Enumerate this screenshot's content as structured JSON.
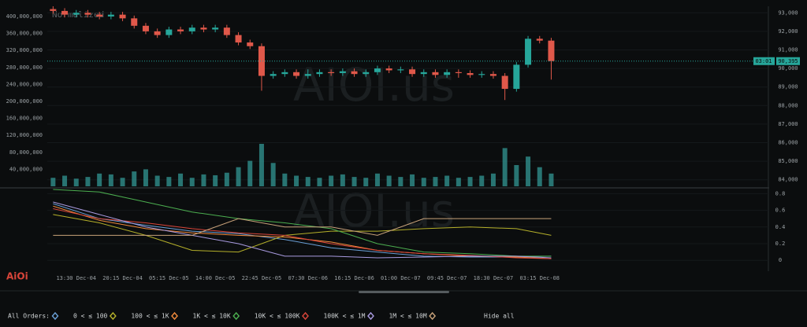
{
  "watermark": "AIOI.us",
  "logo": "AiOi",
  "hide_all": "Hide all",
  "chart_data": [
    {
      "type": "candlestick",
      "title": "Normalized",
      "categories": [
        null,
        null,
        "13:30 Dec-04",
        null,
        null,
        null,
        "20:15 Dec-04",
        null,
        null,
        null,
        "05:15 Dec-05",
        null,
        null,
        null,
        "14:00 Dec-05",
        null,
        null,
        null,
        "22:45 Dec-05",
        null,
        null,
        null,
        "07:30 Dec-06",
        null,
        null,
        null,
        "16:15 Dec-06",
        null,
        null,
        null,
        "01:00 Dec-07",
        null,
        null,
        null,
        "09:45 Dec-07",
        null,
        null,
        null,
        "18:30 Dec-07",
        null,
        null,
        null,
        "03:15 Dec-08",
        null
      ],
      "open": [
        93200,
        93100,
        92900,
        93000,
        92900,
        92800,
        92900,
        92700,
        92300,
        92000,
        91800,
        92100,
        92000,
        92200,
        92100,
        92200,
        91800,
        91400,
        91200,
        89600,
        89700,
        89800,
        89600,
        89700,
        89800,
        89750,
        89850,
        89700,
        89800,
        90000,
        89900,
        89950,
        89700,
        89800,
        89650,
        89800,
        89750,
        89650,
        89700,
        89600,
        88900,
        90200,
        91600,
        91500
      ],
      "high": [
        93350,
        93250,
        93150,
        93150,
        93050,
        93050,
        93050,
        92850,
        92450,
        92150,
        92250,
        92250,
        92350,
        92350,
        92350,
        92350,
        91950,
        91550,
        91350,
        89850,
        89950,
        89950,
        89950,
        89950,
        89950,
        90000,
        90000,
        89950,
        90150,
        90150,
        90100,
        90100,
        89950,
        89950,
        89950,
        89950,
        89900,
        89850,
        89850,
        89750,
        90350,
        91750,
        91750,
        91650
      ],
      "low": [
        92950,
        92750,
        92750,
        92750,
        92650,
        92650,
        92550,
        92150,
        91850,
        91650,
        91650,
        91850,
        91850,
        91950,
        91950,
        91650,
        91250,
        91050,
        88800,
        89450,
        89550,
        89450,
        89450,
        89550,
        89600,
        89600,
        89550,
        89550,
        89650,
        89750,
        89750,
        89550,
        89550,
        89500,
        89500,
        89500,
        89500,
        89500,
        89450,
        88300,
        88750,
        90050,
        91350,
        89400
      ],
      "close": [
        93100,
        92900,
        93000,
        92900,
        92800,
        92900,
        92700,
        92300,
        92000,
        91800,
        92100,
        92000,
        92200,
        92100,
        92200,
        91800,
        91400,
        91200,
        89600,
        89700,
        89800,
        89600,
        89700,
        89800,
        89750,
        89850,
        89700,
        89800,
        90000,
        89900,
        89950,
        89700,
        89800,
        89650,
        89800,
        89750,
        89650,
        89700,
        89600,
        88900,
        90200,
        91600,
        91500,
        90395
      ],
      "up_color": "#26a69a",
      "down_color": "#e0584a",
      "volume": {
        "axis": "y2",
        "color": "#2f8f8c",
        "values": [
          20000000,
          25000000,
          18000000,
          22000000,
          30000000,
          28000000,
          20000000,
          35000000,
          40000000,
          25000000,
          22000000,
          30000000,
          20000000,
          28000000,
          26000000,
          32000000,
          45000000,
          60000000,
          100000000,
          55000000,
          30000000,
          25000000,
          22000000,
          20000000,
          25000000,
          28000000,
          22000000,
          20000000,
          30000000,
          25000000,
          22000000,
          28000000,
          20000000,
          22000000,
          25000000,
          20000000,
          22000000,
          25000000,
          30000000,
          90000000,
          50000000,
          70000000,
          45000000,
          30000000
        ]
      },
      "ylim": [
        83650,
        93350
      ],
      "yticks": [
        {
          "value": 84000,
          "label": "84,000"
        },
        {
          "value": 85000,
          "label": "85,000"
        },
        {
          "value": 86000,
          "label": "86,000"
        },
        {
          "value": 87000,
          "label": "87,000"
        },
        {
          "value": 88000,
          "label": "88,000"
        },
        {
          "value": 89000,
          "label": "89,000"
        },
        {
          "value": 90000,
          "label": "90,000"
        },
        {
          "value": 91000,
          "label": "91,000"
        },
        {
          "value": 92000,
          "label": "92,000"
        },
        {
          "value": 93000,
          "label": "93,000"
        }
      ],
      "y2lim": [
        0,
        424000000
      ],
      "y2ticks": [
        {
          "value": 40000000,
          "label": "40,000,000"
        },
        {
          "value": 80000000,
          "label": "80,000,000"
        },
        {
          "value": 120000000,
          "label": "120,000,000"
        },
        {
          "value": 160000000,
          "label": "160,000,000"
        },
        {
          "value": 200000000,
          "label": "200,000,000"
        },
        {
          "value": 240000000,
          "label": "240,000,000"
        },
        {
          "value": 280000000,
          "label": "280,000,000"
        },
        {
          "value": 320000000,
          "label": "320,000,000"
        },
        {
          "value": 360000000,
          "label": "360,000,000"
        },
        {
          "value": 400000000,
          "label": "400,000,000"
        }
      ],
      "last_price": 90395,
      "last_price_label": "90,395",
      "last_time": "03:01",
      "grid": true
    },
    {
      "type": "line",
      "x": [
        0,
        4,
        8,
        12,
        16,
        20,
        24,
        28,
        32,
        36,
        40,
        43
      ],
      "series": [
        {
          "name": "All Orders:",
          "color": "#6a9fd6",
          "values": [
            0.68,
            0.5,
            0.42,
            0.35,
            0.32,
            0.25,
            0.15,
            0.1,
            0.05,
            0.04,
            0.04,
            0.05
          ]
        },
        {
          "name": "0 < ≤ 100",
          "color": "#b5b02a",
          "values": [
            0.55,
            0.45,
            0.3,
            0.12,
            0.1,
            0.3,
            0.35,
            0.35,
            0.38,
            0.4,
            0.38,
            0.3
          ]
        },
        {
          "name": "100 < ≤ 1K",
          "color": "#f08a3c",
          "values": [
            0.65,
            0.48,
            0.38,
            0.33,
            0.3,
            0.28,
            0.22,
            0.12,
            0.08,
            0.05,
            0.04,
            0.02
          ]
        },
        {
          "name": "1K < ≤ 10K",
          "color": "#4caf50",
          "values": [
            0.85,
            0.82,
            0.7,
            0.58,
            0.5,
            0.45,
            0.38,
            0.2,
            0.1,
            0.08,
            0.05,
            0.05
          ]
        },
        {
          "name": "10K < ≤ 100K",
          "color": "#d9453a",
          "values": [
            0.62,
            0.5,
            0.45,
            0.38,
            0.33,
            0.3,
            0.2,
            0.12,
            0.08,
            0.06,
            0.03,
            0.02
          ]
        },
        {
          "name": "100K < ≤ 1M",
          "color": "#a99be0",
          "values": [
            0.7,
            0.55,
            0.4,
            0.3,
            0.2,
            0.05,
            0.05,
            0.03,
            0.04,
            0.05,
            0.05,
            0.03
          ]
        },
        {
          "name": "1M < ≤ 10M",
          "color": "#c8a27a",
          "values": [
            0.3,
            0.3,
            0.3,
            0.3,
            0.5,
            0.4,
            0.4,
            0.3,
            0.5,
            0.5,
            0.5,
            0.5
          ]
        }
      ],
      "ylim": [
        -0.13,
        0.86
      ],
      "yticks": [
        0,
        0.2,
        0.4,
        0.6,
        0.8
      ],
      "grid": true
    }
  ]
}
